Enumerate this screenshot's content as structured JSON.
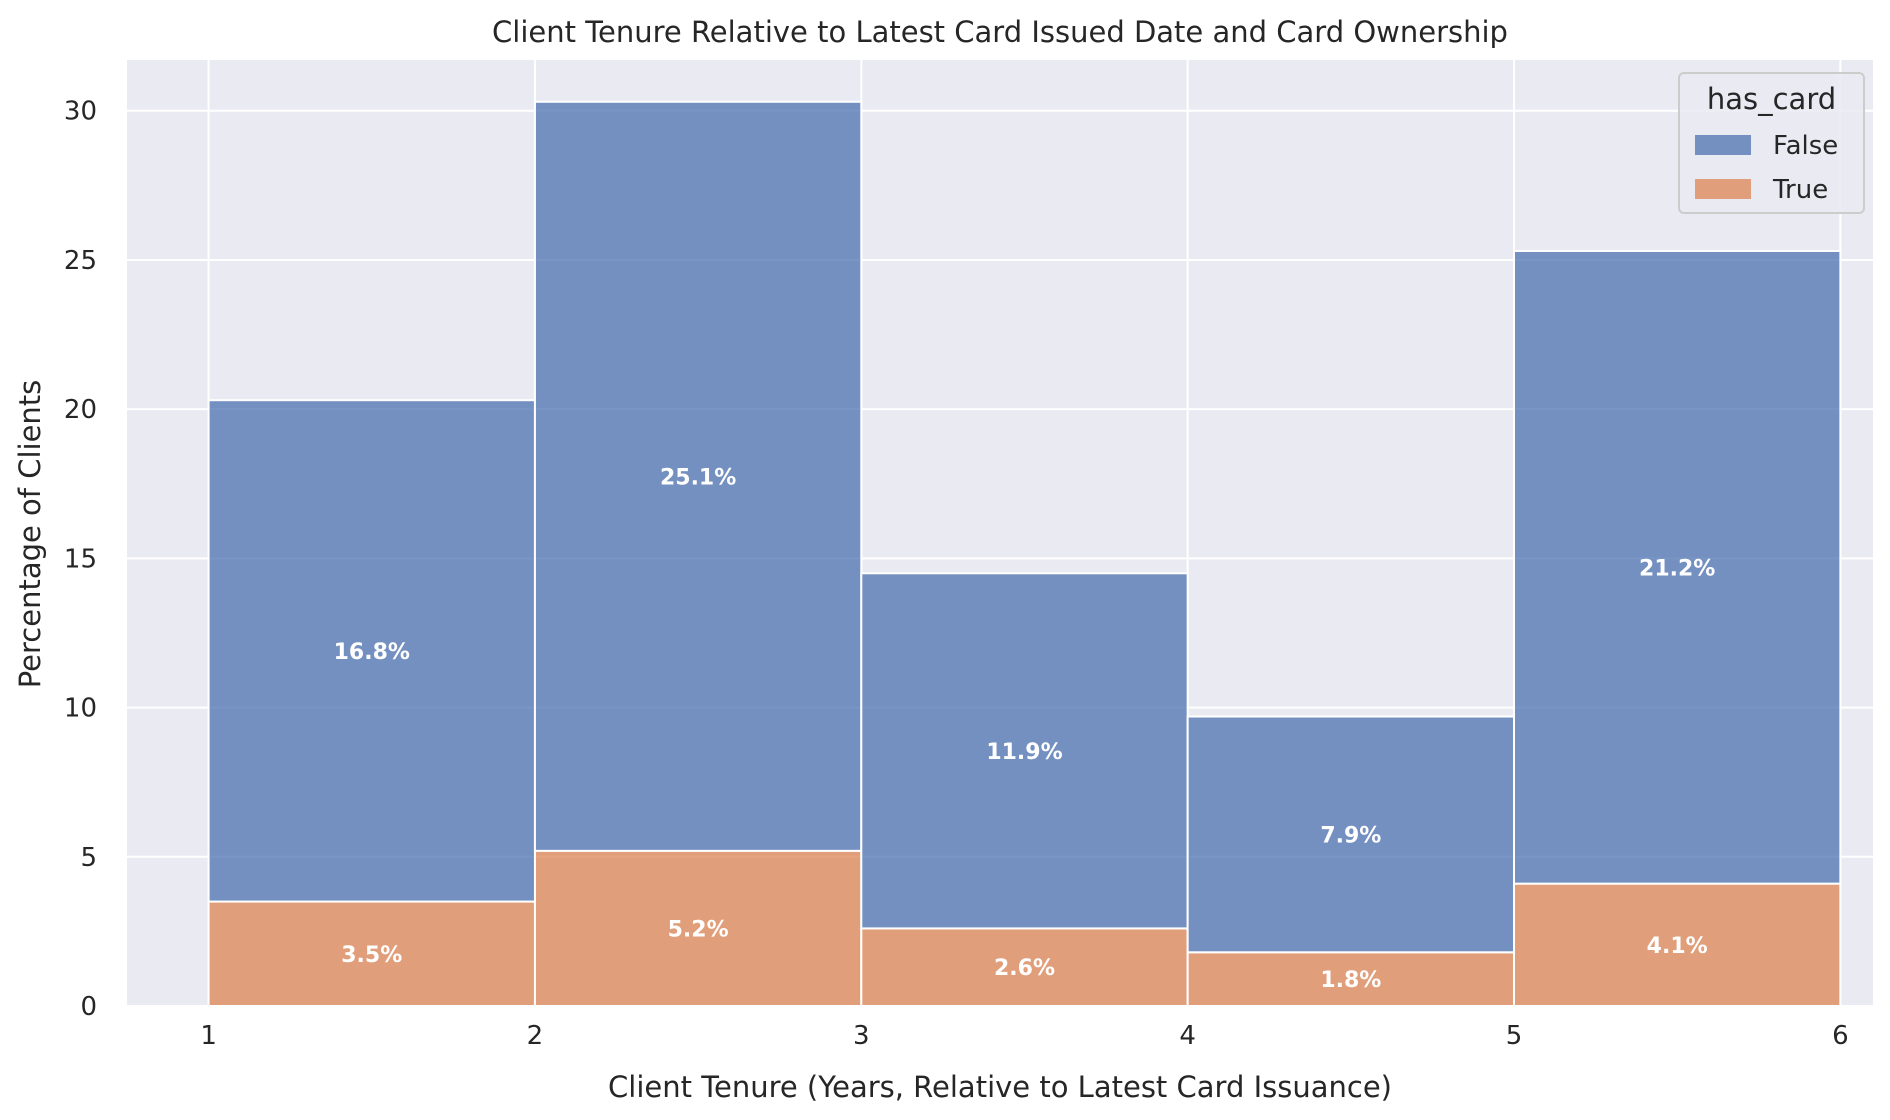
{
  "chart_data": {
    "type": "bar",
    "stacked": true,
    "title": "Client Tenure Relative to Latest Card Issued Date and Card Ownership",
    "xlabel": "Client Tenure (Years, Relative to Latest Card Issuance)",
    "ylabel": "Percentage of Clients",
    "xlim": [
      0.75,
      6.1
    ],
    "ylim": [
      0,
      31.7
    ],
    "x_ticks": [
      "1",
      "2",
      "3",
      "4",
      "5",
      "6"
    ],
    "y_ticks": [
      "0",
      "5",
      "10",
      "15",
      "20",
      "25",
      "30"
    ],
    "bin_edges": [
      1,
      2,
      3,
      4,
      5,
      6
    ],
    "grid": true,
    "legend": {
      "title": "has_card",
      "placement": "top-right"
    },
    "series": [
      {
        "name": "True",
        "color": "#dd8452",
        "values": [
          3.5,
          5.2,
          2.6,
          1.8,
          4.1
        ],
        "labels": [
          "3.5%",
          "5.2%",
          "2.6%",
          "1.8%",
          "4.1%"
        ]
      },
      {
        "name": "False",
        "color": "#4c72b0",
        "values": [
          16.8,
          25.1,
          11.9,
          7.9,
          21.2
        ],
        "labels": [
          "16.8%",
          "25.1%",
          "11.9%",
          "7.9%",
          "21.2%"
        ]
      }
    ],
    "legend_entries": [
      {
        "label": "False",
        "color": "#4c72b0"
      },
      {
        "label": "True",
        "color": "#dd8452"
      }
    ]
  }
}
